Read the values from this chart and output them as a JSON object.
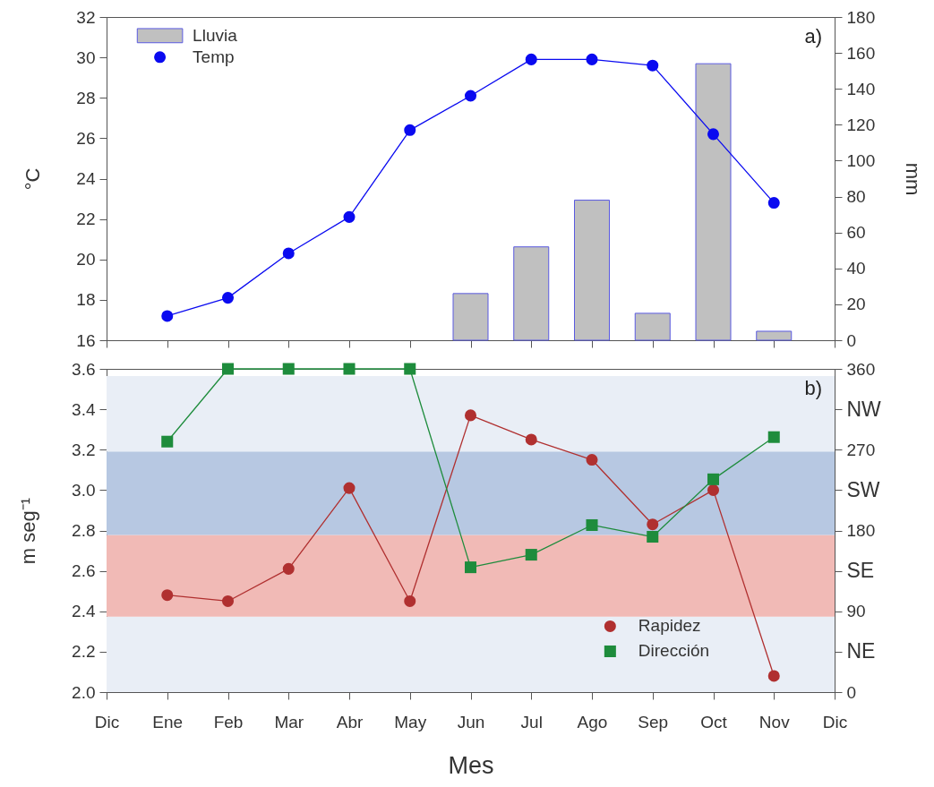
{
  "chart_data": [
    {
      "type": "bar",
      "categories": [
        "Dic",
        "Ene",
        "Feb",
        "Mar",
        "Abr",
        "May",
        "Jun",
        "Jul",
        "Ago",
        "Sep",
        "Oct",
        "Nov",
        "Dic"
      ],
      "series": [
        {
          "name": "Lluvia",
          "type": "bar",
          "axis": "y2",
          "color": "#c0c0c0",
          "values": [
            null,
            null,
            null,
            null,
            null,
            null,
            26,
            52,
            78,
            15,
            154,
            5,
            null
          ]
        },
        {
          "name": "Temp",
          "type": "line",
          "marker": "circle",
          "color": "#0a0af0",
          "values": [
            null,
            17.2,
            18.1,
            20.3,
            22.1,
            26.4,
            28.1,
            29.9,
            29.9,
            29.6,
            26.2,
            22.8,
            null
          ]
        }
      ],
      "ylabel": "°C",
      "y2label": "mm",
      "ylim": [
        16,
        32
      ],
      "yticks": [
        16,
        18,
        20,
        22,
        24,
        26,
        28,
        30,
        32
      ],
      "y2lim": [
        0,
        180
      ],
      "y2ticks": [
        0,
        20,
        40,
        60,
        80,
        100,
        120,
        140,
        160,
        180
      ],
      "legend": "top left",
      "tick_labels": "y",
      "annotations": [
        "a)"
      ]
    },
    {
      "type": "line",
      "categories": [
        "Dic",
        "Ene",
        "Feb",
        "Mar",
        "Abr",
        "May",
        "Jun",
        "Jul",
        "Ago",
        "Sep",
        "Oct",
        "Nov",
        "Dic"
      ],
      "series": [
        {
          "name": "Rapidez",
          "marker": "circle",
          "color": "#b03030",
          "values": [
            null,
            2.48,
            2.45,
            2.61,
            3.01,
            2.45,
            3.37,
            3.25,
            3.15,
            2.83,
            3.0,
            2.08,
            null
          ]
        },
        {
          "name": "Dirección",
          "marker": "square",
          "axis": "y2",
          "color": "#1e8c3c",
          "values": [
            null,
            279,
            360,
            360,
            360,
            360,
            139,
            153,
            186,
            173,
            237,
            284,
            null
          ]
        }
      ],
      "xlabel": "Mes",
      "ylabel": "m seg⁻¹",
      "ylim": [
        2.0,
        3.6
      ],
      "yticks": [
        {
          "value": 2.0,
          "label": "2.0"
        },
        2.2,
        2.4,
        2.6,
        2.8,
        {
          "value": 3.0,
          "label": "3.0"
        },
        3.2,
        3.4,
        3.6
      ],
      "y2lim": [
        0,
        360
      ],
      "y2ticks": [
        0,
        {
          "value": 45,
          "label": "NE"
        },
        90,
        {
          "value": 135,
          "label": "SE"
        },
        180,
        {
          "value": 225,
          "label": "SW"
        },
        270,
        {
          "value": 315,
          "label": "NW"
        },
        360
      ],
      "bands": [
        {
          "axis": "y2",
          "from": 0,
          "to": 84,
          "color": "#e9eef6"
        },
        {
          "axis": "y2",
          "from": 84,
          "to": 175,
          "color": "#f1bab6"
        },
        {
          "axis": "y2",
          "from": 175,
          "to": 268,
          "color": "#b7c8e2"
        },
        {
          "axis": "y2",
          "from": 268,
          "to": 352,
          "color": "#e9eef6"
        }
      ],
      "legend": "bottom right",
      "annotations": [
        "b)"
      ]
    }
  ]
}
